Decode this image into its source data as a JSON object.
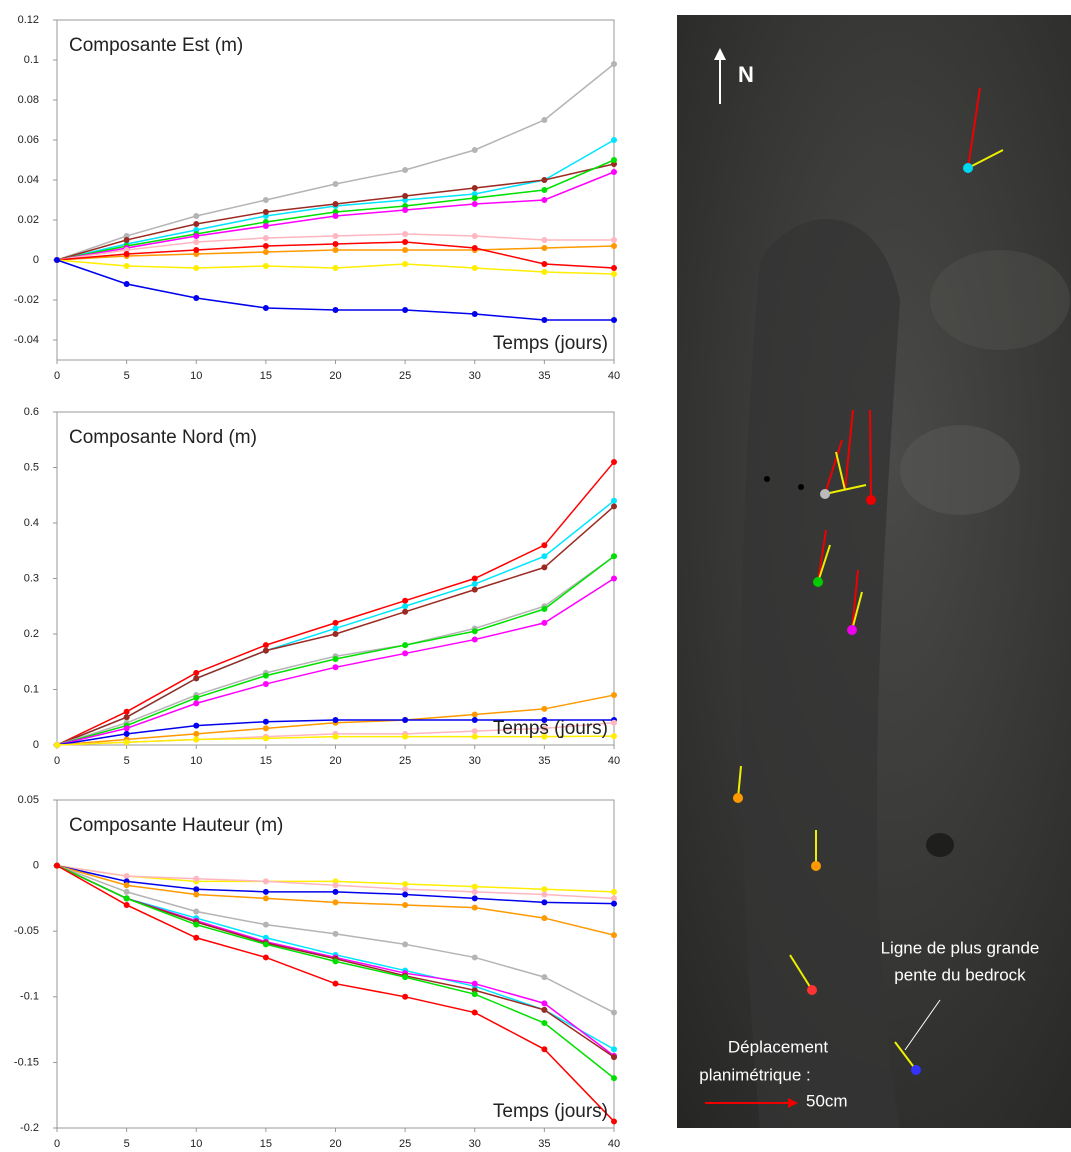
{
  "chart_data": [
    {
      "type": "line",
      "title": "Composante Est (m)",
      "xlabel": "Temps (jours)",
      "x": [
        0,
        5,
        10,
        15,
        20,
        25,
        30,
        35,
        40
      ],
      "xlim": [
        0,
        40
      ],
      "xticks": [
        0,
        5,
        10,
        15,
        20,
        25,
        30,
        35,
        40
      ],
      "ylim": [
        -0.05,
        0.12
      ],
      "yticks": [
        -0.04,
        -0.02,
        0,
        0.02,
        0.04,
        0.06,
        0.08,
        0.1,
        0.12
      ],
      "series": [
        {
          "color": "#b4b4b4",
          "values": [
            0,
            0.012,
            0.022,
            0.03,
            0.038,
            0.045,
            0.055,
            0.07,
            0.098
          ]
        },
        {
          "color": "#00e5ff",
          "values": [
            0,
            0.008,
            0.015,
            0.022,
            0.027,
            0.03,
            0.033,
            0.04,
            0.06
          ]
        },
        {
          "color": "#9b2a22",
          "values": [
            0,
            0.01,
            0.018,
            0.024,
            0.028,
            0.032,
            0.036,
            0.04,
            0.048
          ]
        },
        {
          "color": "#00e000",
          "values": [
            0,
            0.007,
            0.013,
            0.019,
            0.024,
            0.027,
            0.031,
            0.035,
            0.05
          ]
        },
        {
          "color": "#ff00ff",
          "values": [
            0,
            0.006,
            0.012,
            0.017,
            0.022,
            0.025,
            0.028,
            0.03,
            0.044
          ]
        },
        {
          "color": "#ffb6c1",
          "values": [
            0,
            0.005,
            0.009,
            0.011,
            0.012,
            0.013,
            0.012,
            0.01,
            0.01
          ]
        },
        {
          "color": "#ff9900",
          "values": [
            0,
            0.002,
            0.003,
            0.004,
            0.005,
            0.005,
            0.005,
            0.006,
            0.007
          ]
        },
        {
          "color": "#ff0000",
          "values": [
            0,
            0.003,
            0.005,
            0.007,
            0.008,
            0.009,
            0.006,
            -0.002,
            -0.004
          ]
        },
        {
          "color": "#ffee00",
          "values": [
            0,
            -0.003,
            -0.004,
            -0.003,
            -0.004,
            -0.002,
            -0.004,
            -0.006,
            -0.007
          ]
        },
        {
          "color": "#0000ee",
          "values": [
            0,
            -0.012,
            -0.019,
            -0.024,
            -0.025,
            -0.025,
            -0.027,
            -0.03,
            -0.03
          ]
        }
      ]
    },
    {
      "type": "line",
      "title": "Composante Nord (m)",
      "xlabel": "Temps (jours)",
      "x": [
        0,
        5,
        10,
        15,
        20,
        25,
        30,
        35,
        40
      ],
      "xlim": [
        0,
        40
      ],
      "xticks": [
        0,
        5,
        10,
        15,
        20,
        25,
        30,
        35,
        40
      ],
      "ylim": [
        0,
        0.6
      ],
      "yticks": [
        0,
        0.1,
        0.2,
        0.3,
        0.4,
        0.5,
        0.6
      ],
      "series": [
        {
          "color": "#ff0000",
          "values": [
            0,
            0.06,
            0.13,
            0.18,
            0.22,
            0.26,
            0.3,
            0.36,
            0.51
          ]
        },
        {
          "color": "#00e5ff",
          "values": [
            0,
            0.05,
            0.12,
            0.17,
            0.21,
            0.25,
            0.29,
            0.34,
            0.44
          ]
        },
        {
          "color": "#9b2a22",
          "values": [
            0,
            0.05,
            0.12,
            0.17,
            0.2,
            0.24,
            0.28,
            0.32,
            0.43
          ]
        },
        {
          "color": "#b4b4b4",
          "values": [
            0,
            0.04,
            0.09,
            0.13,
            0.16,
            0.18,
            0.21,
            0.25,
            0.34
          ]
        },
        {
          "color": "#00e000",
          "values": [
            0,
            0.035,
            0.085,
            0.125,
            0.155,
            0.18,
            0.205,
            0.245,
            0.34
          ]
        },
        {
          "color": "#ff00ff",
          "values": [
            0,
            0.03,
            0.075,
            0.11,
            0.14,
            0.165,
            0.19,
            0.22,
            0.3
          ]
        },
        {
          "color": "#ff9900",
          "values": [
            0,
            0.01,
            0.02,
            0.03,
            0.04,
            0.045,
            0.055,
            0.065,
            0.09
          ]
        },
        {
          "color": "#0000ee",
          "values": [
            0,
            0.02,
            0.035,
            0.042,
            0.045,
            0.045,
            0.045,
            0.045,
            0.045
          ]
        },
        {
          "color": "#ffb6c1",
          "values": [
            0,
            0.005,
            0.01,
            0.015,
            0.02,
            0.02,
            0.025,
            0.03,
            0.04
          ]
        },
        {
          "color": "#ffee00",
          "values": [
            0,
            0.005,
            0.01,
            0.012,
            0.015,
            0.015,
            0.015,
            0.015,
            0.016
          ]
        }
      ]
    },
    {
      "type": "line",
      "title": "Composante Hauteur (m)",
      "xlabel": "Temps (jours)",
      "x": [
        0,
        5,
        10,
        15,
        20,
        25,
        30,
        35,
        40
      ],
      "xlim": [
        0,
        40
      ],
      "xticks": [
        0,
        5,
        10,
        15,
        20,
        25,
        30,
        35,
        40
      ],
      "ylim": [
        -0.2,
        0.05
      ],
      "yticks": [
        -0.2,
        -0.15,
        -0.1,
        -0.05,
        0,
        0.05
      ],
      "series": [
        {
          "color": "#ffee00",
          "values": [
            0,
            -0.008,
            -0.012,
            -0.012,
            -0.012,
            -0.014,
            -0.016,
            -0.018,
            -0.02
          ]
        },
        {
          "color": "#ffb6c1",
          "values": [
            0,
            -0.008,
            -0.01,
            -0.012,
            -0.015,
            -0.018,
            -0.02,
            -0.022,
            -0.025
          ]
        },
        {
          "color": "#0000ee",
          "values": [
            0,
            -0.012,
            -0.018,
            -0.02,
            -0.02,
            -0.022,
            -0.025,
            -0.028,
            -0.029
          ]
        },
        {
          "color": "#ff9900",
          "values": [
            0,
            -0.015,
            -0.022,
            -0.025,
            -0.028,
            -0.03,
            -0.032,
            -0.04,
            -0.053
          ]
        },
        {
          "color": "#b4b4b4",
          "values": [
            0,
            -0.02,
            -0.035,
            -0.045,
            -0.052,
            -0.06,
            -0.07,
            -0.085,
            -0.112
          ]
        },
        {
          "color": "#00e5ff",
          "values": [
            0,
            -0.025,
            -0.04,
            -0.055,
            -0.068,
            -0.08,
            -0.092,
            -0.11,
            -0.14
          ]
        },
        {
          "color": "#ff00ff",
          "values": [
            0,
            -0.025,
            -0.042,
            -0.058,
            -0.07,
            -0.082,
            -0.09,
            -0.105,
            -0.145
          ]
        },
        {
          "color": "#9b2a22",
          "values": [
            0,
            -0.025,
            -0.043,
            -0.059,
            -0.071,
            -0.084,
            -0.095,
            -0.11,
            -0.146
          ]
        },
        {
          "color": "#00e000",
          "values": [
            0,
            -0.025,
            -0.045,
            -0.06,
            -0.073,
            -0.085,
            -0.098,
            -0.12,
            -0.162
          ]
        },
        {
          "color": "#ff0000",
          "values": [
            0,
            -0.03,
            -0.055,
            -0.07,
            -0.09,
            -0.1,
            -0.112,
            -0.14,
            -0.195
          ]
        }
      ]
    }
  ],
  "map": {
    "north_label": "N",
    "bedrock_label": [
      "Ligne de plus grande",
      "pente du bedrock"
    ],
    "scale_label": [
      "Déplacement",
      "planimétrique :"
    ],
    "scale_value": "50cm"
  }
}
